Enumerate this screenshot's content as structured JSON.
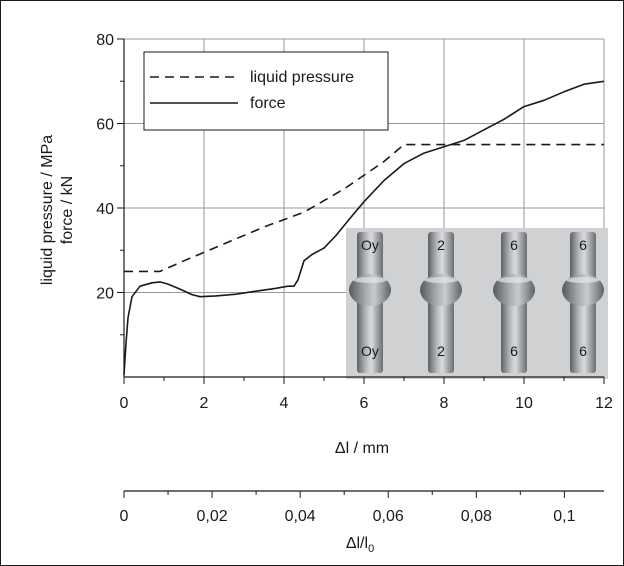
{
  "chart_data": {
    "type": "line",
    "xlabel": "Δl / mm",
    "ylabel_lines": [
      "liquid pressure / MPa",
      "force / kN"
    ],
    "xlim": [
      0,
      12
    ],
    "ylim": [
      0,
      80
    ],
    "x_ticks": [
      "0",
      "2",
      "4",
      "6",
      "8",
      "10",
      "12"
    ],
    "y_ticks": [
      "20",
      "40",
      "60",
      "80"
    ],
    "grid": true,
    "legend_position": "top-left",
    "series": [
      {
        "name": "liquid pressure",
        "style": "dashed",
        "x": [
          0,
          0.9,
          1.5,
          2.5,
          3.5,
          4.5,
          5.5,
          6.5,
          7.0,
          8.0,
          9.0,
          10.0,
          11.0,
          12.0
        ],
        "y": [
          25,
          25,
          27.5,
          31.5,
          35.5,
          39,
          44.5,
          51,
          55,
          55,
          55,
          55,
          55,
          55
        ]
      },
      {
        "name": "force",
        "style": "solid",
        "x": [
          0,
          0.05,
          0.1,
          0.2,
          0.4,
          0.7,
          0.9,
          1.1,
          1.4,
          1.7,
          1.9,
          2.3,
          2.8,
          3.3,
          3.8,
          4.1,
          4.25,
          4.35,
          4.5,
          4.7,
          5.0,
          5.3,
          5.6,
          6.0,
          6.5,
          7.0,
          7.5,
          8.0,
          8.5,
          9.0,
          9.5,
          10.0,
          10.5,
          11.0,
          11.5,
          12.0
        ],
        "y": [
          0.5,
          8,
          14,
          19,
          21.5,
          22.3,
          22.5,
          22,
          20.8,
          19.5,
          19,
          19.2,
          19.6,
          20.3,
          21,
          21.5,
          21.5,
          23,
          27.5,
          29,
          30.5,
          33.5,
          37,
          41.5,
          46.5,
          50.5,
          53,
          54.5,
          56,
          58.5,
          61,
          64,
          65.5,
          67.5,
          69.3,
          70
        ]
      }
    ],
    "secondary_x_axis": {
      "label": "Δl/l",
      "label_subscript": "0",
      "ticks": [
        "0",
        "0,02",
        "0,04",
        "0,06",
        "0,08",
        "0,1"
      ],
      "values": [
        0,
        0.02,
        0.04,
        0.06,
        0.08,
        0.1
      ],
      "xlim": [
        0,
        0.109
      ]
    }
  },
  "colors": {
    "line": "#1a1a1a",
    "grid": "#999999",
    "photo_background": "#cfd1d3",
    "specimen_metal": "#8c9095"
  },
  "photo": {
    "description_icon": "specimen-photo",
    "marks": [
      "Oy",
      "2",
      "6",
      "6"
    ]
  }
}
